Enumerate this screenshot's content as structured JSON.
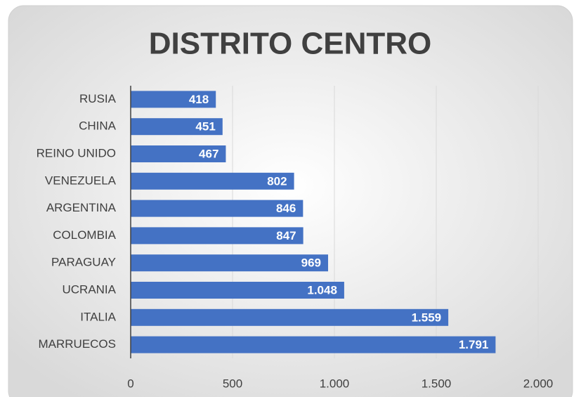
{
  "chart_data": {
    "type": "bar",
    "orientation": "horizontal",
    "title": "DISTRITO CENTRO",
    "categories": [
      "RUSIA",
      "CHINA",
      "REINO UNIDO",
      "VENEZUELA",
      "ARGENTINA",
      "COLOMBIA",
      "PARAGUAY",
      "UCRANIA",
      "ITALIA",
      "MARRUECOS"
    ],
    "values": [
      418,
      451,
      467,
      802,
      846,
      847,
      969,
      1048,
      1559,
      1791
    ],
    "value_labels": [
      "418",
      "451",
      "467",
      "802",
      "846",
      "847",
      "969",
      "1.048",
      "1.559",
      "1.791"
    ],
    "color": "#4472c4",
    "xlim": [
      0,
      2000
    ],
    "xticks": [
      0,
      500,
      {
        "value": 1000,
        "label": "1.000"
      },
      {
        "value": 1500,
        "label": "1.500"
      },
      {
        "value": 2000,
        "label": "2.000"
      }
    ],
    "grid": true
  }
}
